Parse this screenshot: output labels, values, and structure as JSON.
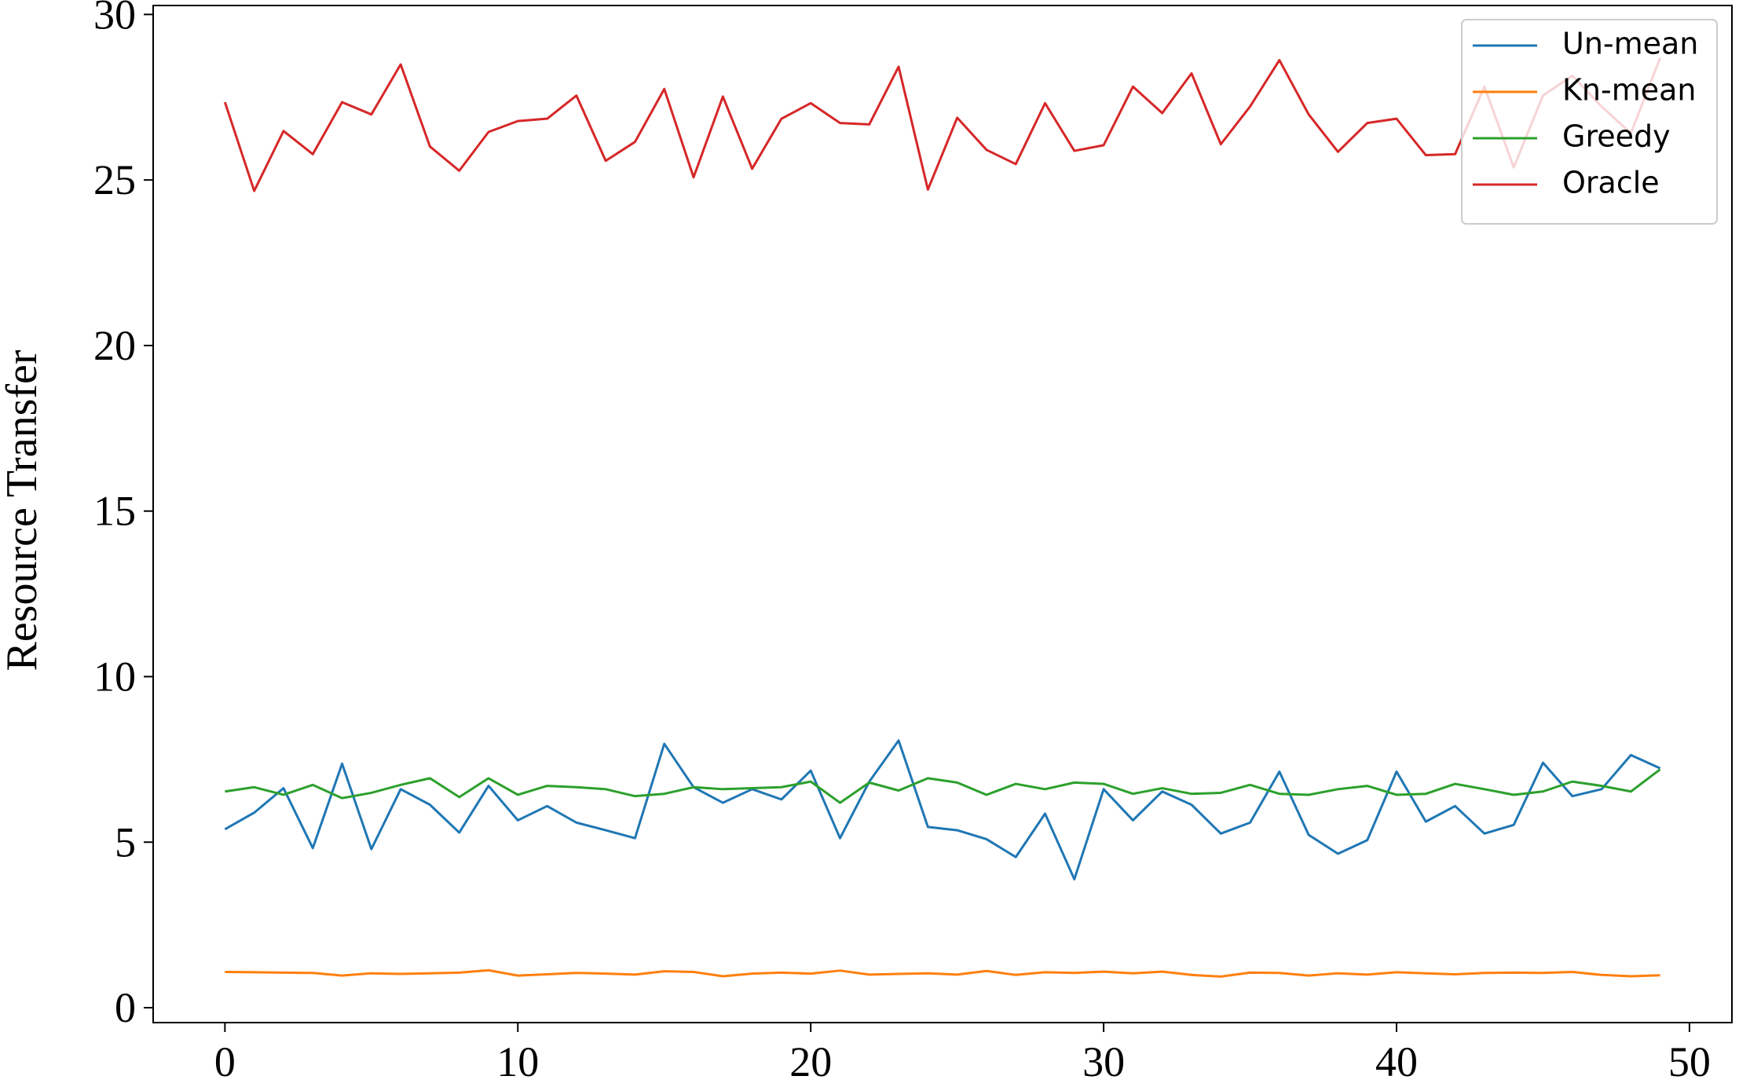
{
  "chart_data": {
    "type": "line",
    "y_label": "Resource Transfer",
    "x": [
      0,
      1,
      2,
      3,
      4,
      5,
      6,
      7,
      8,
      9,
      10,
      11,
      12,
      13,
      14,
      15,
      16,
      17,
      18,
      19,
      20,
      21,
      22,
      23,
      24,
      25,
      26,
      27,
      28,
      29,
      30,
      31,
      32,
      33,
      34,
      35,
      36,
      37,
      38,
      39,
      40,
      41,
      42,
      43,
      44,
      45,
      46,
      47,
      48,
      49
    ],
    "series": [
      {
        "name": "Un-mean",
        "color": "#1f77b4",
        "values": [
          5.39,
          5.89,
          6.63,
          4.82,
          7.37,
          4.79,
          6.6,
          6.13,
          5.29,
          6.7,
          5.66,
          6.09,
          5.59,
          5.36,
          5.12,
          7.97,
          6.66,
          6.19,
          6.6,
          6.29,
          7.16,
          5.12,
          6.83,
          8.07,
          5.46,
          5.36,
          5.09,
          4.55,
          5.86,
          3.88,
          6.6,
          5.66,
          6.53,
          6.13,
          5.26,
          5.59,
          7.13,
          5.22,
          4.65,
          5.06,
          7.13,
          5.62,
          6.09,
          5.26,
          5.52,
          7.4,
          6.39,
          6.6,
          7.63,
          7.23
        ]
      },
      {
        "name": "Kn-mean",
        "color": "#ff7f0e",
        "values": [
          1.08,
          1.07,
          1.06,
          1.05,
          0.97,
          1.04,
          1.02,
          1.04,
          1.06,
          1.13,
          0.97,
          1.01,
          1.05,
          1.03,
          1.0,
          1.1,
          1.08,
          0.95,
          1.03,
          1.06,
          1.03,
          1.12,
          1.0,
          1.02,
          1.04,
          1.0,
          1.11,
          0.99,
          1.07,
          1.05,
          1.09,
          1.04,
          1.09,
          0.99,
          0.94,
          1.06,
          1.05,
          0.97,
          1.04,
          1.0,
          1.07,
          1.04,
          1.01,
          1.05,
          1.06,
          1.05,
          1.08,
          0.99,
          0.95,
          0.98
        ]
      },
      {
        "name": "Greedy",
        "color": "#2ca02c",
        "values": [
          6.53,
          6.66,
          6.43,
          6.73,
          6.33,
          6.49,
          6.73,
          6.93,
          6.36,
          6.93,
          6.43,
          6.7,
          6.66,
          6.6,
          6.39,
          6.46,
          6.66,
          6.6,
          6.63,
          6.66,
          6.83,
          6.19,
          6.8,
          6.56,
          6.93,
          6.8,
          6.43,
          6.76,
          6.6,
          6.8,
          6.76,
          6.46,
          6.63,
          6.46,
          6.49,
          6.73,
          6.46,
          6.43,
          6.6,
          6.7,
          6.43,
          6.46,
          6.76,
          6.6,
          6.43,
          6.53,
          6.83,
          6.7,
          6.53,
          7.2
        ]
      },
      {
        "name": "Oracle",
        "color": "#d62728",
        "values": [
          27.35,
          24.67,
          26.48,
          25.78,
          27.35,
          26.98,
          28.49,
          26.01,
          25.28,
          26.45,
          26.78,
          26.85,
          27.55,
          25.58,
          26.15,
          27.75,
          25.08,
          27.52,
          25.34,
          26.85,
          27.32,
          26.72,
          26.68,
          28.42,
          24.71,
          26.88,
          25.91,
          25.48,
          27.32,
          25.88,
          26.05,
          27.82,
          27.02,
          28.22,
          26.08,
          27.22,
          28.62,
          26.98,
          25.85,
          26.72,
          26.85,
          25.75,
          25.78,
          27.82,
          25.38,
          27.55,
          28.15,
          27.22,
          26.41,
          28.69
        ]
      }
    ],
    "xlim": [
      -2.45,
      51.45
    ],
    "ylim": [
      -0.45,
      30.27
    ],
    "xticks": [
      0,
      10,
      20,
      30,
      40,
      50
    ],
    "yticks": [
      0,
      5,
      10,
      15,
      20,
      25,
      30
    ],
    "grid": false,
    "legend": "upper right"
  }
}
